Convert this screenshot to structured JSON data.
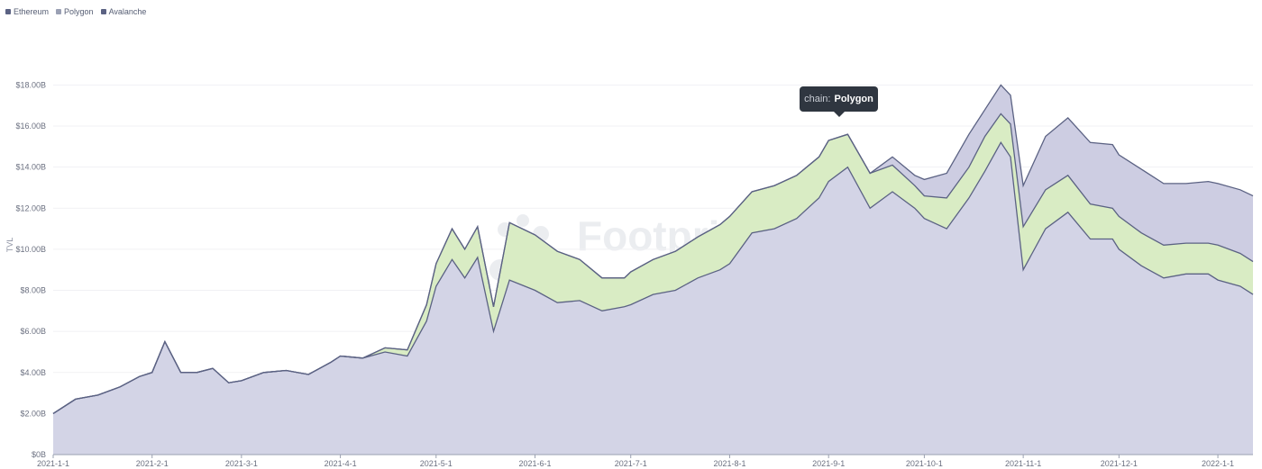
{
  "legend": [
    {
      "name": "Ethereum",
      "color": "#5b6283"
    },
    {
      "name": "Polygon",
      "color": "#9aa0b4"
    },
    {
      "name": "Avalanche",
      "color": "#5b6283"
    }
  ],
  "tooltip": {
    "key": "chain:",
    "value": "Polygon"
  },
  "watermark": "Footprint Analytics",
  "chart_data": {
    "type": "area",
    "stacked": true,
    "ylabel": "TVL",
    "ylim": [
      0,
      21
    ],
    "yticks": [
      "$0B",
      "$2.00B",
      "$4.00B",
      "$6.00B",
      "$8.00B",
      "$10.00B",
      "$12.00B",
      "$14.00B",
      "$16.00B",
      "$18.00B"
    ],
    "xticks": [
      "2021-1-1",
      "2021-2-1",
      "2021-3-1",
      "2021-4-1",
      "2021-5-1",
      "2021-6-1",
      "2021-7-1",
      "2021-8-1",
      "2021-9-1",
      "2021-10-1",
      "2021-11-1",
      "2021-12-1",
      "2022-1-1"
    ],
    "x": [
      "2021-01-01",
      "2021-01-08",
      "2021-01-15",
      "2021-01-22",
      "2021-01-28",
      "2021-02-01",
      "2021-02-05",
      "2021-02-10",
      "2021-02-15",
      "2021-02-20",
      "2021-02-25",
      "2021-03-01",
      "2021-03-08",
      "2021-03-15",
      "2021-03-22",
      "2021-03-29",
      "2021-04-01",
      "2021-04-08",
      "2021-04-15",
      "2021-04-22",
      "2021-04-28",
      "2021-05-01",
      "2021-05-06",
      "2021-05-10",
      "2021-05-14",
      "2021-05-19",
      "2021-05-24",
      "2021-06-01",
      "2021-06-08",
      "2021-06-15",
      "2021-06-22",
      "2021-06-29",
      "2021-07-01",
      "2021-07-08",
      "2021-07-15",
      "2021-07-22",
      "2021-07-29",
      "2021-08-01",
      "2021-08-08",
      "2021-08-15",
      "2021-08-22",
      "2021-08-29",
      "2021-09-01",
      "2021-09-07",
      "2021-09-14",
      "2021-09-21",
      "2021-09-28",
      "2021-10-01",
      "2021-10-08",
      "2021-10-15",
      "2021-10-20",
      "2021-10-25",
      "2021-10-28",
      "2021-11-01",
      "2021-11-08",
      "2021-11-15",
      "2021-11-22",
      "2021-11-29",
      "2021-12-01",
      "2021-12-08",
      "2021-12-15",
      "2021-12-22",
      "2021-12-29",
      "2022-01-01",
      "2022-01-08",
      "2022-01-12"
    ],
    "series": [
      {
        "name": "Ethereum",
        "color": "#d3d4e6",
        "values": [
          2.0,
          2.7,
          2.9,
          3.3,
          3.8,
          4.0,
          5.5,
          4.0,
          4.0,
          4.2,
          3.5,
          3.6,
          4.0,
          4.1,
          3.9,
          4.5,
          4.8,
          4.7,
          5.0,
          4.8,
          6.5,
          8.2,
          9.5,
          8.6,
          9.6,
          6.0,
          8.5,
          8.0,
          7.4,
          7.5,
          7.0,
          7.2,
          7.3,
          7.8,
          8.0,
          8.6,
          9.0,
          9.3,
          10.8,
          11.0,
          11.5,
          12.5,
          13.3,
          14.0,
          12.0,
          12.8,
          12.0,
          11.5,
          11.0,
          12.5,
          13.8,
          15.2,
          14.5,
          9.0,
          11.0,
          11.8,
          10.5,
          10.5,
          10.0,
          9.2,
          8.6,
          8.8,
          8.8,
          8.5,
          8.2,
          7.8
        ]
      },
      {
        "name": "Polygon",
        "color": "#d9ecc4",
        "values": [
          0.0,
          0.0,
          0.0,
          0.0,
          0.0,
          0.0,
          0.0,
          0.0,
          0.0,
          0.0,
          0.0,
          0.0,
          0.0,
          0.0,
          0.0,
          0.0,
          0.0,
          0.0,
          0.2,
          0.3,
          0.8,
          1.1,
          1.5,
          1.4,
          1.5,
          1.2,
          2.8,
          2.7,
          2.5,
          2.0,
          1.6,
          1.4,
          1.6,
          1.7,
          1.9,
          2.0,
          2.2,
          2.3,
          2.0,
          2.1,
          2.1,
          2.0,
          2.0,
          1.6,
          1.7,
          1.3,
          1.1,
          1.1,
          1.5,
          1.5,
          1.7,
          1.4,
          1.6,
          2.1,
          1.9,
          1.8,
          1.7,
          1.5,
          1.6,
          1.6,
          1.6,
          1.5,
          1.5,
          1.7,
          1.6,
          1.6
        ]
      },
      {
        "name": "Avalanche",
        "color": "#cdcde2",
        "values": [
          0.0,
          0.0,
          0.0,
          0.0,
          0.0,
          0.0,
          0.0,
          0.0,
          0.0,
          0.0,
          0.0,
          0.0,
          0.0,
          0.0,
          0.0,
          0.0,
          0.0,
          0.0,
          0.0,
          0.0,
          0.0,
          0.0,
          0.0,
          0.0,
          0.0,
          0.0,
          0.0,
          0.0,
          0.0,
          0.0,
          0.0,
          0.0,
          0.0,
          0.0,
          0.0,
          0.0,
          0.0,
          0.0,
          0.0,
          0.0,
          0.0,
          0.0,
          0.0,
          0.0,
          0.0,
          0.4,
          0.5,
          0.8,
          1.2,
          1.6,
          1.3,
          1.4,
          1.4,
          2.0,
          2.6,
          2.8,
          3.0,
          3.1,
          3.0,
          3.1,
          3.0,
          2.9,
          3.0,
          3.0,
          3.1,
          3.2
        ]
      }
    ]
  }
}
